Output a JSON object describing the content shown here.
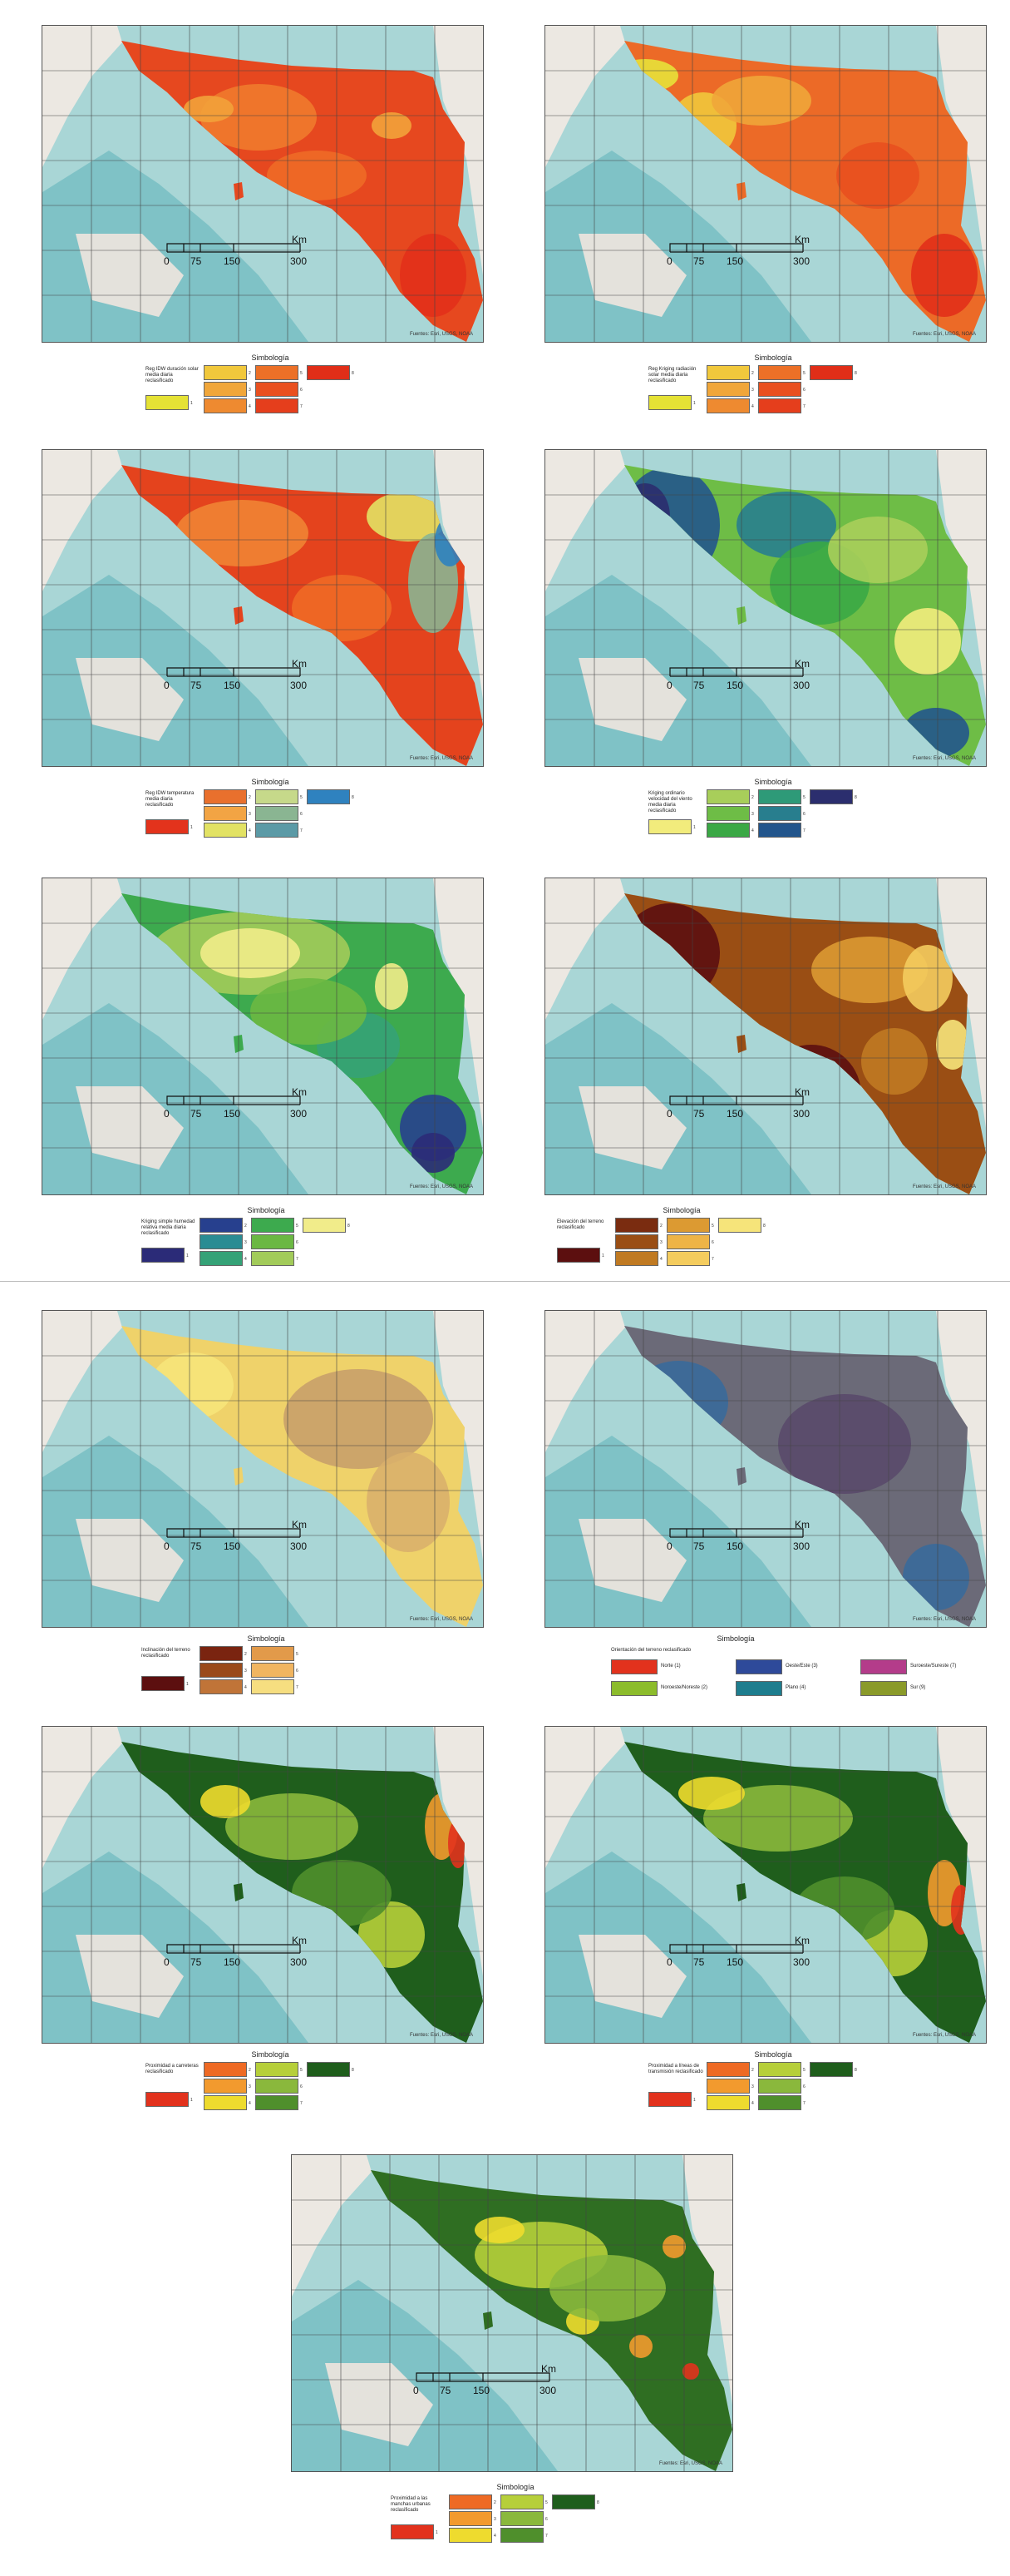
{
  "map_common": {
    "scale_labels": [
      "0",
      "75",
      "150",
      "300"
    ],
    "scale_unit": "Km",
    "credit": "Fuentes: Esri, USGS, NOAA",
    "legend_heading": "Simbología"
  },
  "panels": [
    {
      "id": "irradiation-idw",
      "legend_label": "Reg IDW duración solar media diaria reclasificado",
      "theme": "heat",
      "swatches": [
        {
          "n": "1",
          "color": "#e5e235"
        },
        {
          "n": "2",
          "color": "#f1c83c"
        },
        {
          "n": "3",
          "color": "#f0a63a"
        },
        {
          "n": "4",
          "color": "#ee8a30"
        },
        {
          "n": "5",
          "color": "#ec7027"
        },
        {
          "n": "6",
          "color": "#e9501f"
        },
        {
          "n": "7",
          "color": "#e53e1c"
        },
        {
          "n": "8",
          "color": "#e02e18"
        }
      ]
    },
    {
      "id": "radiation-kriging",
      "legend_label": "Reg Kriging radiación solar media diaria reclasificado",
      "theme": "heat2",
      "swatches": [
        {
          "n": "1",
          "color": "#e5e235"
        },
        {
          "n": "2",
          "color": "#f1c83c"
        },
        {
          "n": "3",
          "color": "#f0a63a"
        },
        {
          "n": "4",
          "color": "#ee8a30"
        },
        {
          "n": "5",
          "color": "#ec7027"
        },
        {
          "n": "6",
          "color": "#e9501f"
        },
        {
          "n": "7",
          "color": "#e53e1c"
        },
        {
          "n": "8",
          "color": "#e02e18"
        }
      ]
    },
    {
      "id": "temperature-idw",
      "legend_label": "Reg IDW temperatura media diaria reclasificado",
      "theme": "temp",
      "swatches": [
        {
          "n": "1",
          "color": "#e3331c"
        },
        {
          "n": "2",
          "color": "#e9702d"
        },
        {
          "n": "3",
          "color": "#f2a444"
        },
        {
          "n": "4",
          "color": "#e2e264"
        },
        {
          "n": "5",
          "color": "#c6d98a"
        },
        {
          "n": "6",
          "color": "#8ab592"
        },
        {
          "n": "7",
          "color": "#5b9aa6"
        },
        {
          "n": "8",
          "color": "#2f82bf"
        }
      ]
    },
    {
      "id": "wind-kriging",
      "legend_label": "Kriging ordinario velocidad del viento media diaria reclasificado",
      "theme": "wind",
      "swatches": [
        {
          "n": "1",
          "color": "#f2ec7c"
        },
        {
          "n": "2",
          "color": "#a8ce5a"
        },
        {
          "n": "3",
          "color": "#6ebd46"
        },
        {
          "n": "4",
          "color": "#3aa845"
        },
        {
          "n": "5",
          "color": "#2e9a78"
        },
        {
          "n": "6",
          "color": "#287e8e"
        },
        {
          "n": "7",
          "color": "#22558c"
        },
        {
          "n": "8",
          "color": "#2b2e6e"
        }
      ]
    },
    {
      "id": "humidity-kriging",
      "legend_label": "Kriging simple humedad relativa media diaria reclasificado",
      "theme": "humid",
      "swatches": [
        {
          "n": "1",
          "color": "#2b2b78"
        },
        {
          "n": "2",
          "color": "#27408e"
        },
        {
          "n": "3",
          "color": "#2a8c93"
        },
        {
          "n": "4",
          "color": "#35a277"
        },
        {
          "n": "5",
          "color": "#3daa4e"
        },
        {
          "n": "6",
          "color": "#6bb843"
        },
        {
          "n": "7",
          "color": "#a2cb5a"
        },
        {
          "n": "8",
          "color": "#f1ec8a"
        }
      ]
    },
    {
      "id": "elevation",
      "legend_label": "Elevación del terreno reclasificado",
      "theme": "elev",
      "swatches": [
        {
          "n": "1",
          "color": "#5c0f0f"
        },
        {
          "n": "2",
          "color": "#7a2c10"
        },
        {
          "n": "3",
          "color": "#9a4e14"
        },
        {
          "n": "4",
          "color": "#c07a22"
        },
        {
          "n": "5",
          "color": "#dc9a32"
        },
        {
          "n": "6",
          "color": "#eeb446"
        },
        {
          "n": "7",
          "color": "#f4cc5e"
        },
        {
          "n": "8",
          "color": "#f6e47a"
        }
      ]
    },
    {
      "id": "slope",
      "legend_label": "Inclinación del terreno reclasificado",
      "theme": "slope",
      "swatches": [
        {
          "n": "1",
          "color": "#5c0f0f"
        },
        {
          "n": "2",
          "color": "#7a2410"
        },
        {
          "n": "3",
          "color": "#9a4a1a"
        },
        {
          "n": "4",
          "color": "#c07438"
        },
        {
          "n": "5",
          "color": "#e29a4a"
        },
        {
          "n": "6",
          "color": "#f1b560"
        },
        {
          "n": "7",
          "color": "#f6de80"
        }
      ]
    },
    {
      "id": "aspect",
      "legend_label": "Orientación del terreno reclasificado",
      "theme": "aspect",
      "aspect_items": [
        {
          "label": "Norte (1)",
          "color": "#e2321d"
        },
        {
          "label": "Noroeste/Noreste (2)",
          "color": "#8cbc2c"
        },
        {
          "label": "Oeste/Este (3)",
          "color": "#2e4a9a"
        },
        {
          "label": "Plano (4)",
          "color": "#1e7d8e"
        },
        {
          "label": "Suroeste/Sureste (7)",
          "color": "#b43c8a"
        },
        {
          "label": "Sur (9)",
          "color": "#8a9a2a"
        }
      ]
    },
    {
      "id": "proximity-roads",
      "legend_label": "Proximidad a carreteras reclasificado",
      "theme": "prox",
      "swatches": [
        {
          "n": "1",
          "color": "#e2321d"
        },
        {
          "n": "2",
          "color": "#ee6a24"
        },
        {
          "n": "3",
          "color": "#f29a2e"
        },
        {
          "n": "4",
          "color": "#eedb2e"
        },
        {
          "n": "5",
          "color": "#b6cf3a"
        },
        {
          "n": "6",
          "color": "#8ab83c"
        },
        {
          "n": "7",
          "color": "#4f8f2c"
        },
        {
          "n": "8",
          "color": "#1f5e1c"
        }
      ]
    },
    {
      "id": "proximity-lines",
      "legend_label": "Proximidad a líneas de transmisión reclasificado",
      "theme": "prox2",
      "swatches": [
        {
          "n": "1",
          "color": "#e2321d"
        },
        {
          "n": "2",
          "color": "#ee6a24"
        },
        {
          "n": "3",
          "color": "#f29a2e"
        },
        {
          "n": "4",
          "color": "#eedb2e"
        },
        {
          "n": "5",
          "color": "#b6cf3a"
        },
        {
          "n": "6",
          "color": "#8ab83c"
        },
        {
          "n": "7",
          "color": "#4f8f2c"
        },
        {
          "n": "8",
          "color": "#1f5e1c"
        }
      ]
    },
    {
      "id": "proximity-urban",
      "legend_label": "Proximidad a las manchas urbanas reclasificado",
      "theme": "prox3",
      "swatches": [
        {
          "n": "1",
          "color": "#e2321d"
        },
        {
          "n": "2",
          "color": "#ee6a24"
        },
        {
          "n": "3",
          "color": "#f29a2e"
        },
        {
          "n": "4",
          "color": "#eedb2e"
        },
        {
          "n": "5",
          "color": "#b6cf3a"
        },
        {
          "n": "6",
          "color": "#8ab83c"
        },
        {
          "n": "7",
          "color": "#4f8f2c"
        },
        {
          "n": "8",
          "color": "#1f5e1c"
        }
      ]
    }
  ]
}
